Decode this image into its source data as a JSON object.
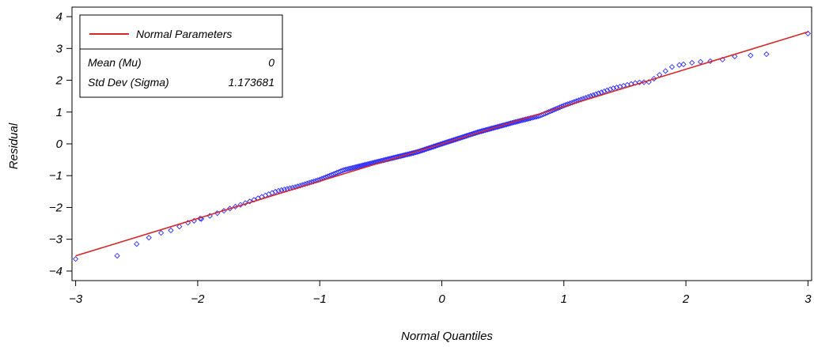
{
  "chart_data": {
    "type": "scatter",
    "title": "",
    "xlabel": "Normal Quantiles",
    "ylabel": "Residual",
    "xlim": [
      -3.03,
      3.03
    ],
    "ylim": [
      -4.3,
      4.3
    ],
    "x_ticks": [
      -3,
      -2,
      -1,
      0,
      1,
      2,
      3
    ],
    "y_ticks": [
      -4,
      -3,
      -2,
      -1,
      0,
      1,
      2,
      3,
      4
    ],
    "x_tick_labels": [
      "−3",
      "−2",
      "−1",
      "0",
      "1",
      "2",
      "3"
    ],
    "y_tick_labels": [
      "−4",
      "−3",
      "−2",
      "−1",
      "0",
      "1",
      "2",
      "3",
      "4"
    ],
    "grid": false,
    "legend": {
      "placement": "top-left",
      "entry": "Normal Parameters",
      "rows": [
        {
          "label": "Mean (Mu)",
          "value": "0"
        },
        {
          "label": "Std Dev (Sigma)",
          "value": "1.173681"
        }
      ]
    },
    "reference_line": {
      "name": "Normal Parameters",
      "mean": 0,
      "sigma": 1.173681,
      "color": "#d62728"
    },
    "series": [
      {
        "marker": "diamond",
        "color": "#2c2cff",
        "tail_points": [
          [
            -3.0,
            -3.62
          ],
          [
            -2.66,
            -3.52
          ],
          [
            -2.5,
            -3.15
          ],
          [
            -2.4,
            -2.95
          ],
          [
            -2.3,
            -2.8
          ],
          [
            -2.22,
            -2.72
          ],
          [
            -2.15,
            -2.6
          ],
          [
            -2.08,
            -2.48
          ],
          [
            -2.03,
            -2.42
          ],
          [
            -1.98,
            -2.35
          ],
          [
            1.98,
            2.5
          ],
          [
            2.05,
            2.55
          ],
          [
            2.12,
            2.58
          ],
          [
            2.2,
            2.6
          ],
          [
            2.3,
            2.65
          ],
          [
            2.4,
            2.75
          ],
          [
            2.53,
            2.78
          ],
          [
            2.66,
            2.82
          ],
          [
            3.0,
            3.47
          ]
        ],
        "deviations_x": [
          -1.98,
          -1.6,
          -1.35,
          -1.2,
          -1.0,
          -0.8,
          -0.5,
          -0.2,
          0.0,
          0.3,
          0.6,
          0.8,
          1.0,
          1.2,
          1.4,
          1.6,
          1.7,
          1.8,
          1.9,
          1.98
        ],
        "deviations_resid": [
          -0.05,
          0.03,
          0.1,
          0.05,
          0.05,
          0.12,
          0.05,
          -0.02,
          0.0,
          0.02,
          -0.02,
          -0.06,
          0.03,
          0.07,
          0.1,
          0.05,
          -0.05,
          0.1,
          0.22,
          0.18
        ]
      }
    ]
  }
}
